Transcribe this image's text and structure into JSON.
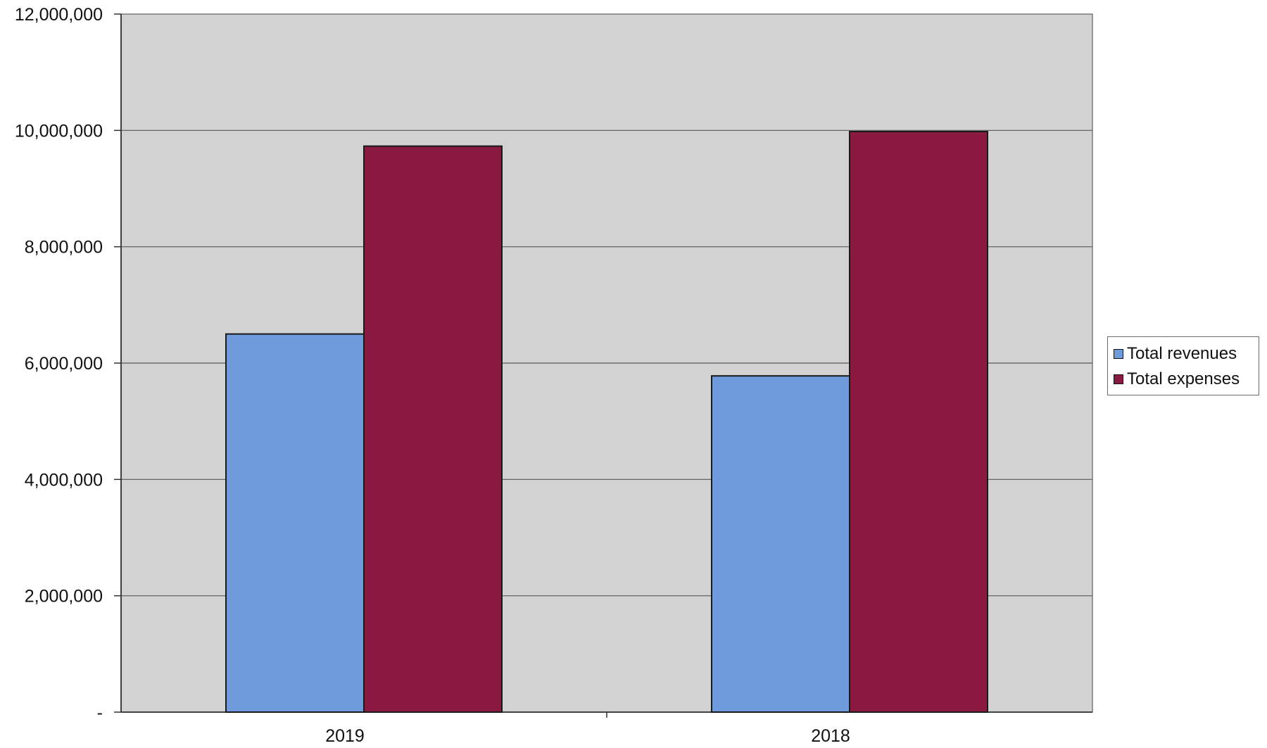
{
  "chart_data": {
    "type": "bar",
    "categories": [
      "2019",
      "2018"
    ],
    "series": [
      {
        "name": "Total revenues",
        "values": [
          6500000,
          5780000
        ],
        "color": "#6f9bdd"
      },
      {
        "name": "Total expenses",
        "values": [
          9730000,
          9980000
        ],
        "color": "#8b1a42"
      }
    ],
    "yticks": [
      {
        "value": 0,
        "label": "-"
      },
      {
        "value": 2000000,
        "label": "2,000,000"
      },
      {
        "value": 4000000,
        "label": "4,000,000"
      },
      {
        "value": 6000000,
        "label": "6,000,000"
      },
      {
        "value": 8000000,
        "label": "8,000,000"
      },
      {
        "value": 10000000,
        "label": "10,000,000"
      },
      {
        "value": 12000000,
        "label": "12,000,000"
      }
    ],
    "ylim": [
      0,
      12000000
    ],
    "grid": true,
    "legend_position": "right",
    "plot_background": "#d2d2d2"
  }
}
